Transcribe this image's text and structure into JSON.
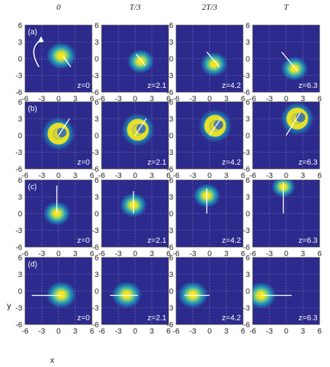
{
  "chart_data": {
    "type": "heatmap",
    "column_titles": [
      "0",
      "T/3",
      "2T/3",
      "T"
    ],
    "row_labels": [
      "(a)",
      "(b)",
      "(c)",
      "(d)"
    ],
    "xlabel": "x",
    "ylabel": "y",
    "xlim": [
      -6,
      6
    ],
    "ylim": [
      -6,
      6
    ],
    "xticks": [
      "-6",
      "-3",
      "0",
      "3",
      "6"
    ],
    "yticks": [
      "6",
      "3",
      "0",
      "-3",
      "-6"
    ],
    "grid": true,
    "colors": {
      "background": "#2c2a8c",
      "mid": "#19a9c9",
      "peak": "#f5e51f",
      "guide": "#ffffff",
      "grid": "#8a8ac8"
    },
    "panels": [
      {
        "row": 0,
        "col": 0,
        "z": "z=0",
        "peak": [
          0.5,
          0.5
        ],
        "spread": 1.0,
        "shape": "blob",
        "line": [
          [
            0.8,
            0.5
          ],
          [
            2.2,
            -1.5
          ]
        ]
      },
      {
        "row": 0,
        "col": 1,
        "z": "z=2.1",
        "peak": [
          1.0,
          -0.5
        ],
        "spread": 0.9,
        "shape": "blob",
        "line": [
          [
            0.2,
            0.8
          ],
          [
            1.8,
            -1.2
          ]
        ]
      },
      {
        "row": 0,
        "col": 2,
        "z": "z=4.2",
        "peak": [
          0.8,
          -1.0
        ],
        "spread": 0.9,
        "shape": "blob",
        "line": [
          [
            -0.5,
            1.2
          ],
          [
            1.8,
            -1.5
          ]
        ]
      },
      {
        "row": 0,
        "col": 3,
        "z": "z=6.3",
        "peak": [
          1.5,
          -1.8
        ],
        "spread": 0.9,
        "shape": "blob",
        "line": [
          [
            -0.8,
            1.2
          ],
          [
            2.0,
            -2.2
          ]
        ]
      },
      {
        "row": 1,
        "col": 0,
        "z": "z=0",
        "peak": [
          0.0,
          0.3
        ],
        "spread": 1.0,
        "shape": "crescent",
        "line": [
          [
            0.0,
            0.0
          ],
          [
            2.0,
            3.0
          ]
        ]
      },
      {
        "row": 1,
        "col": 1,
        "z": "z=2.1",
        "peak": [
          0.5,
          1.0
        ],
        "spread": 1.0,
        "shape": "crescent",
        "line": [
          [
            0.0,
            0.0
          ],
          [
            2.0,
            3.0
          ]
        ]
      },
      {
        "row": 1,
        "col": 2,
        "z": "z=4.2",
        "peak": [
          1.0,
          1.7
        ],
        "spread": 1.0,
        "shape": "crescent",
        "line": [
          [
            0.0,
            0.0
          ],
          [
            2.0,
            3.0
          ]
        ]
      },
      {
        "row": 1,
        "col": 3,
        "z": "z=6.3",
        "peak": [
          2.0,
          3.0
        ],
        "spread": 1.0,
        "shape": "crescent",
        "line": [
          [
            0.0,
            0.0
          ],
          [
            2.5,
            4.0
          ]
        ]
      },
      {
        "row": 2,
        "col": 0,
        "z": "z=0",
        "peak": [
          -0.3,
          0.0
        ],
        "spread": 0.9,
        "shape": "blob",
        "line": [
          [
            -0.3,
            0.0
          ],
          [
            -0.3,
            5.0
          ]
        ]
      },
      {
        "row": 2,
        "col": 1,
        "z": "z=2.1",
        "peak": [
          -0.3,
          1.5
        ],
        "spread": 0.9,
        "shape": "blob",
        "line": [
          [
            -0.3,
            0.0
          ],
          [
            -0.3,
            4.0
          ]
        ]
      },
      {
        "row": 2,
        "col": 2,
        "z": "z=4.2",
        "peak": [
          -0.5,
          3.2
        ],
        "spread": 0.9,
        "shape": "blob",
        "line": [
          [
            -0.5,
            0.0
          ],
          [
            -0.5,
            4.5
          ]
        ]
      },
      {
        "row": 2,
        "col": 3,
        "z": "z=6.3",
        "peak": [
          -0.5,
          4.8
        ],
        "spread": 0.8,
        "shape": "blob",
        "line": [
          [
            -0.5,
            0.0
          ],
          [
            -0.5,
            5.5
          ]
        ]
      },
      {
        "row": 3,
        "col": 0,
        "z": "z=0",
        "peak": [
          0.5,
          -0.7
        ],
        "spread": 1.0,
        "shape": "blob",
        "line": [
          [
            -4.8,
            -0.8
          ],
          [
            0.5,
            -0.8
          ]
        ]
      },
      {
        "row": 3,
        "col": 1,
        "z": "z=2.1",
        "peak": [
          -1.5,
          -0.7
        ],
        "spread": 1.0,
        "shape": "blob",
        "line": [
          [
            -4.5,
            -0.8
          ],
          [
            0.5,
            -0.8
          ]
        ]
      },
      {
        "row": 3,
        "col": 2,
        "z": "z=4.2",
        "peak": [
          -3.0,
          -0.7
        ],
        "spread": 1.0,
        "shape": "blob",
        "line": [
          [
            -4.5,
            -0.8
          ],
          [
            0.0,
            -0.8
          ]
        ]
      },
      {
        "row": 3,
        "col": 3,
        "z": "z=6.3",
        "peak": [
          -4.5,
          -0.8
        ],
        "spread": 1.0,
        "shape": "blob",
        "line": [
          [
            -4.5,
            -0.8
          ],
          [
            1.0,
            -0.8
          ]
        ]
      }
    ]
  }
}
